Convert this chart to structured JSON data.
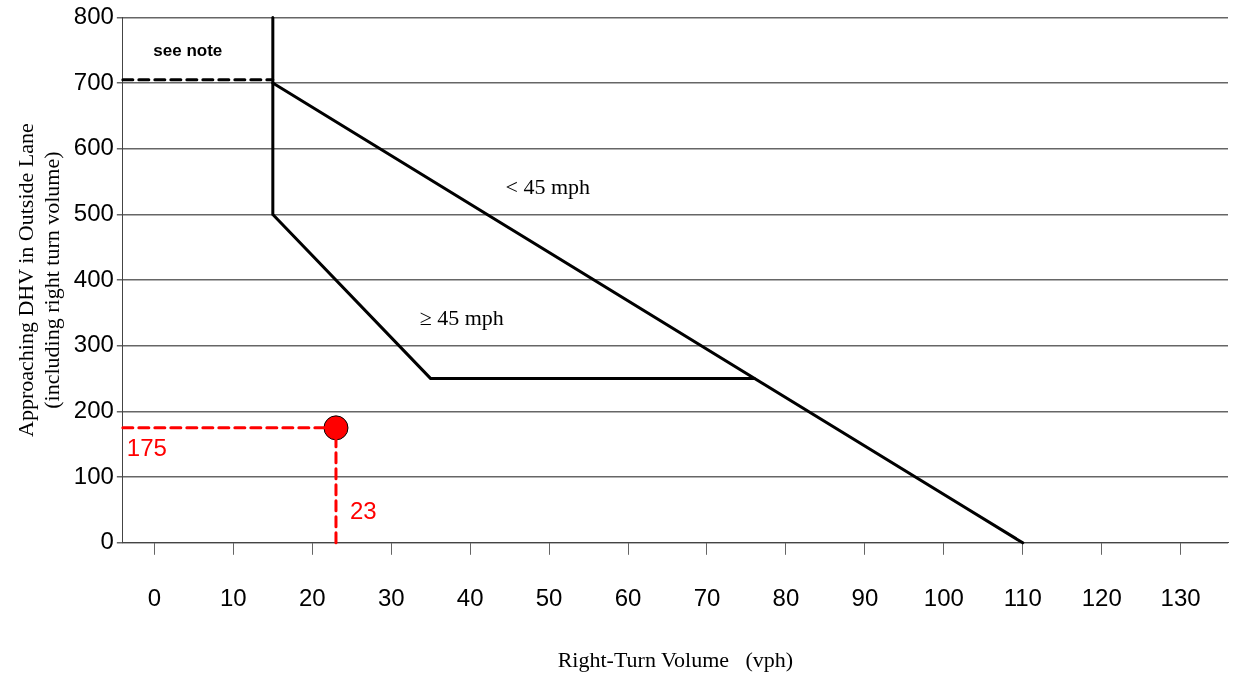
{
  "chart_data": {
    "type": "line",
    "xlabel": "Right-Turn Volume   (vph)",
    "ylabel": "Approaching DHV in Outside Lane\n(including right turn volume)",
    "xlim": [
      -4,
      136
    ],
    "xticks": [
      0,
      10,
      20,
      30,
      40,
      50,
      60,
      70,
      80,
      90,
      100,
      110,
      120,
      130
    ],
    "ylim": [
      0,
      800
    ],
    "yticks": [
      0,
      100,
      200,
      300,
      400,
      500,
      600,
      700,
      800
    ],
    "grid": "y",
    "legend": false,
    "series": [
      {
        "name": "≥ 45 mph",
        "color": "#000000",
        "x": [
          15,
          15,
          35,
          76
        ],
        "values": [
          800,
          500,
          250,
          250
        ],
        "marker": "none",
        "line_style": "solid"
      },
      {
        "name": "< 45 mph",
        "color": "#000000",
        "x": [
          15,
          110
        ],
        "values": [
          700,
          0
        ],
        "marker": "none",
        "line_style": "solid"
      },
      {
        "name": "see note",
        "color": "#000000",
        "x": [
          -4,
          15
        ],
        "values": [
          705,
          705
        ],
        "marker": "none",
        "line_style": "dashed"
      },
      {
        "color": "#ff0000",
        "x": [
          -4,
          23
        ],
        "values": [
          175,
          175
        ],
        "marker": "none",
        "line_style": "dashed"
      },
      {
        "color": "#ff0000",
        "x": [
          23,
          23
        ],
        "values": [
          0,
          175
        ],
        "marker": "none",
        "line_style": "dashed"
      },
      {
        "type": "scatter",
        "color": "#ff0000",
        "x": [
          23
        ],
        "values": [
          175
        ],
        "marker": "circle"
      }
    ],
    "annotations": [
      {
        "text": "175",
        "x": -4,
        "y": 175
      },
      {
        "text": "23",
        "x": 23,
        "y": 0
      }
    ]
  }
}
